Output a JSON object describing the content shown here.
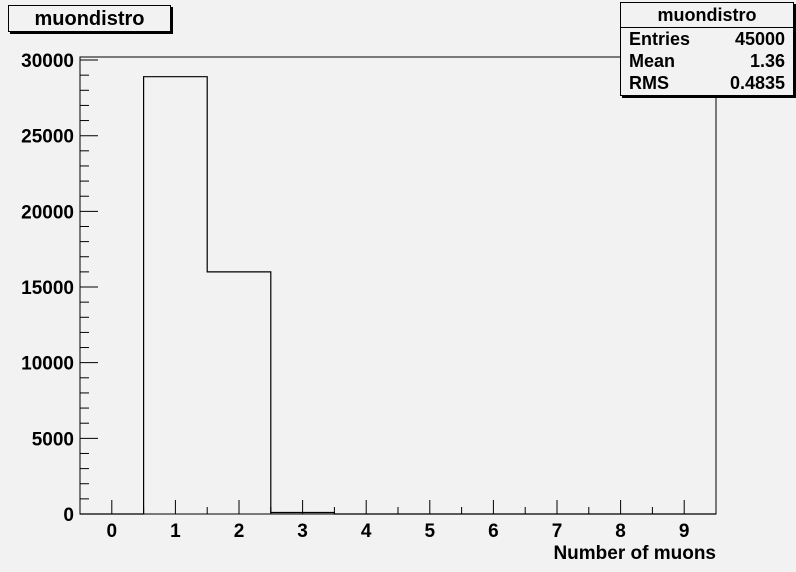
{
  "chart_data": {
    "type": "bar",
    "title": "muondistro",
    "xlabel": "Number of muons",
    "ylabel": "",
    "x_edges": [
      -0.5,
      9.5
    ],
    "bin_width": 1,
    "bins": [
      {
        "x": 0,
        "value": 0
      },
      {
        "x": 1,
        "value": 28900
      },
      {
        "x": 2,
        "value": 16000
      },
      {
        "x": 3,
        "value": 100
      },
      {
        "x": 4,
        "value": 0
      },
      {
        "x": 5,
        "value": 0
      },
      {
        "x": 6,
        "value": 0
      },
      {
        "x": 7,
        "value": 0
      },
      {
        "x": 8,
        "value": 0
      },
      {
        "x": 9,
        "value": 0
      }
    ],
    "xlim": [
      -0.5,
      9.5
    ],
    "ylim": [
      0,
      30200
    ],
    "x_ticks": [
      "0",
      "1",
      "2",
      "3",
      "4",
      "5",
      "6",
      "7",
      "8",
      "9"
    ],
    "y_ticks": [
      "0",
      "5000",
      "10000",
      "15000",
      "20000",
      "25000",
      "30000"
    ],
    "y_tick_values": [
      0,
      5000,
      10000,
      15000,
      20000,
      25000,
      30000
    ],
    "grid": false,
    "legend": "none"
  },
  "stats": {
    "title": "muondistro",
    "rows": [
      {
        "label": "Entries",
        "value": "45000"
      },
      {
        "label": "Mean",
        "value": "1.36"
      },
      {
        "label": "RMS",
        "value": "0.4835"
      }
    ]
  }
}
